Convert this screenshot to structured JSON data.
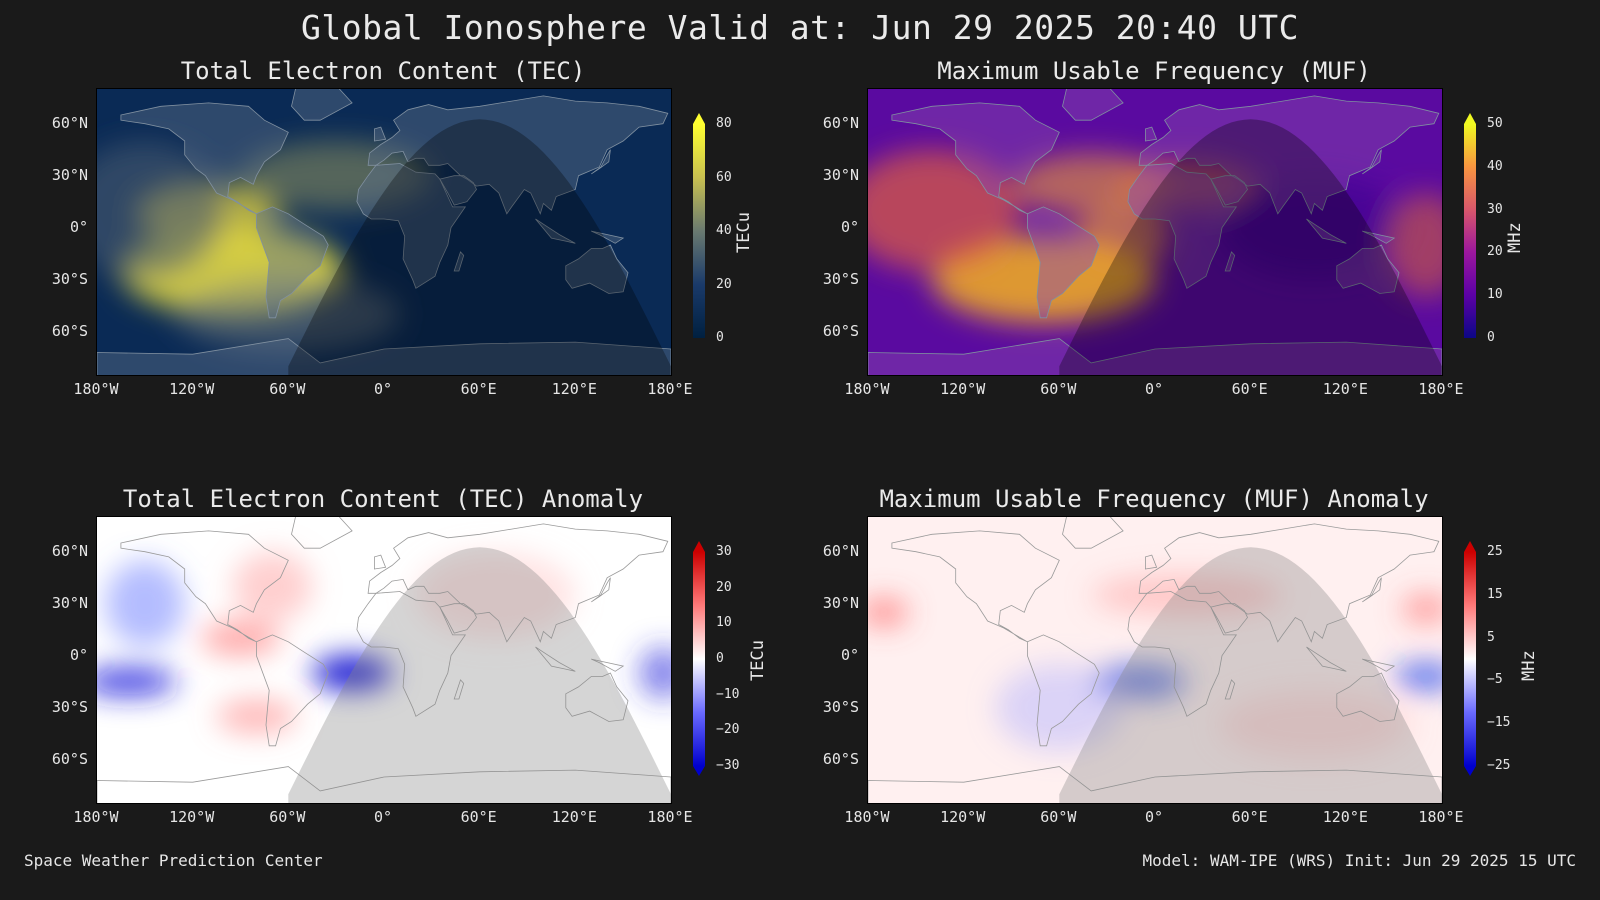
{
  "title": "Global Ionosphere Valid at: Jun 29 2025 20:40 UTC",
  "footer_left": "Space Weather Prediction Center",
  "footer_right": "Model: WAM-IPE (WRS) Init: Jun 29 2025 15 UTC",
  "lon_ticks": [
    "180°W",
    "120°W",
    "60°W",
    "0°",
    "60°E",
    "120°E",
    "180°E"
  ],
  "lat_ticks": [
    "60°N",
    "30°N",
    "0°",
    "30°S",
    "60°S"
  ],
  "panels": [
    {
      "id": "tec",
      "title": "Total Electron Content (TEC)",
      "units": "TECu",
      "colorbar_ticks": [
        "80",
        "60",
        "40",
        "20",
        "0"
      ],
      "colors": [
        "#002040",
        "#1a3a6a",
        "#6a7a70",
        "#c8c050",
        "#ffff30"
      ]
    },
    {
      "id": "muf",
      "title": "Maximum Usable Frequency (MUF)",
      "units": "MHz",
      "colorbar_ticks": [
        "50",
        "40",
        "30",
        "20",
        "10",
        "0"
      ],
      "colors": [
        "#0c0786",
        "#5c01a6",
        "#9c179e",
        "#d8576b",
        "#f89540",
        "#f0f921"
      ]
    },
    {
      "id": "tec_anom",
      "title": "Total Electron Content (TEC) Anomaly",
      "units": "TECu",
      "colorbar_ticks": [
        "30",
        "20",
        "10",
        "0",
        "−10",
        "−20",
        "−30"
      ],
      "colors": [
        "#0000cc",
        "#6a6aff",
        "#ffffff",
        "#ff7a7a",
        "#cc0000"
      ]
    },
    {
      "id": "muf_anom",
      "title": "Maximum Usable Frequency (MUF) Anomaly",
      "units": "MHz",
      "colorbar_ticks": [
        "25",
        "15",
        "5",
        "−5",
        "−15",
        "−25"
      ],
      "colors": [
        "#0000cc",
        "#6a6aff",
        "#ffffff",
        "#ff7a7a",
        "#cc0000"
      ]
    }
  ]
}
